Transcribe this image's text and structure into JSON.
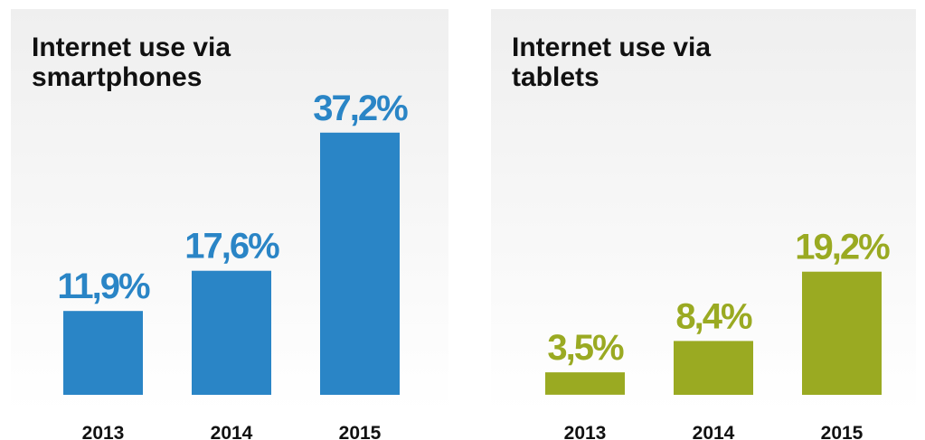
{
  "chart_data": [
    {
      "type": "bar",
      "title": "Internet use via smartphones",
      "categories": [
        "2013",
        "2014",
        "2015"
      ],
      "values": [
        11.9,
        17.6,
        37.2
      ],
      "value_labels": [
        "11,9%",
        "17,6%",
        "37,2%"
      ],
      "xlabel": "",
      "ylabel": "",
      "color": "#2a85c6",
      "grid": false
    },
    {
      "type": "bar",
      "title": "Internet use via tablets",
      "categories": [
        "2013",
        "2014",
        "2015"
      ],
      "values": [
        3.5,
        8.4,
        19.2
      ],
      "value_labels": [
        "3,5%",
        "8,4%",
        "19,2%"
      ],
      "xlabel": "",
      "ylabel": "",
      "color": "#9aaa22",
      "grid": false
    }
  ]
}
